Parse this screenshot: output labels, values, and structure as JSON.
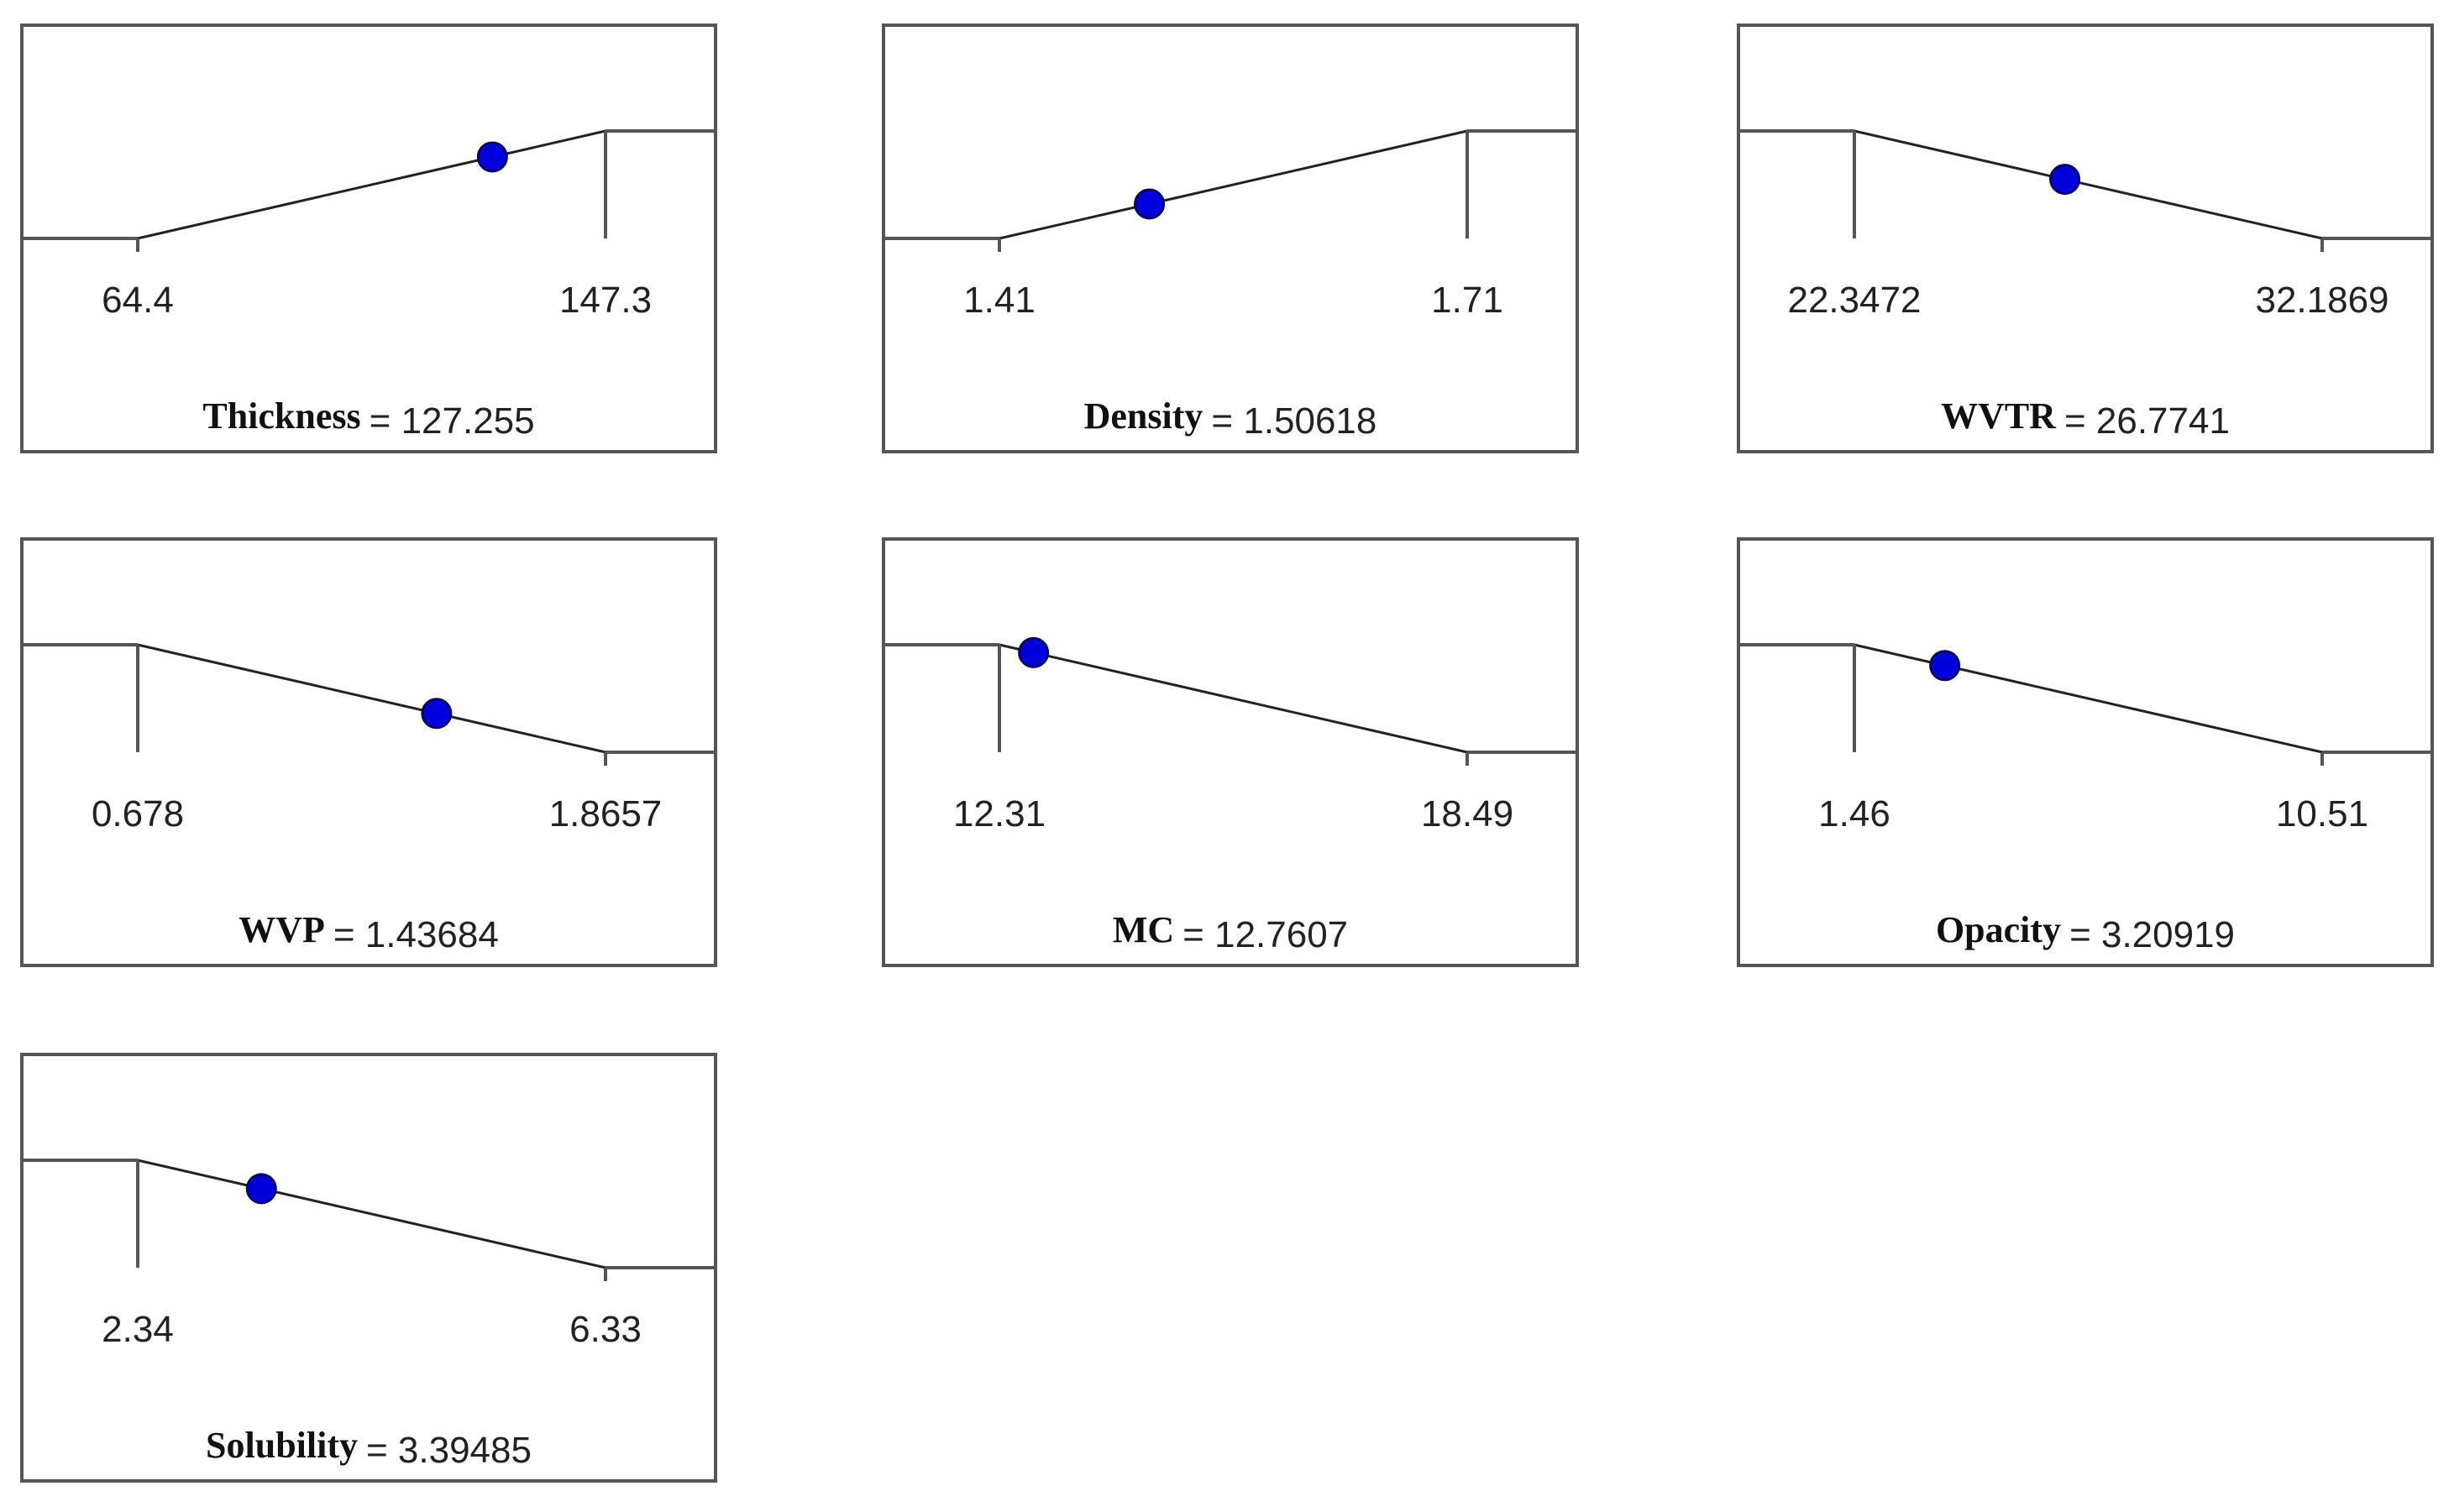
{
  "chart_data": [
    {
      "type": "line",
      "response": "Thickness",
      "low_label": "64.4",
      "high_label": "147.3",
      "x": [
        64.4,
        147.3
      ],
      "y": [
        0,
        1
      ],
      "goal": "maximize",
      "current_value": 127.255,
      "value_text": "= 127.255"
    },
    {
      "type": "line",
      "response": "Density",
      "low_label": "1.41",
      "high_label": "1.71",
      "x": [
        1.41,
        1.71
      ],
      "y": [
        0,
        1
      ],
      "goal": "maximize",
      "current_value": 1.50618,
      "value_text": "= 1.50618"
    },
    {
      "type": "line",
      "response": "WVTR",
      "low_label": "22.3472",
      "high_label": "32.1869",
      "x": [
        22.3472,
        32.1869
      ],
      "y": [
        1,
        0
      ],
      "goal": "minimize",
      "current_value": 26.7741,
      "value_text": "= 26.7741"
    },
    {
      "type": "line",
      "response": "WVP",
      "low_label": "0.678",
      "high_label": "1.8657",
      "x": [
        0.678,
        1.8657
      ],
      "y": [
        1,
        0
      ],
      "goal": "minimize",
      "current_value": 1.43684,
      "value_text": "= 1.43684"
    },
    {
      "type": "line",
      "response": "MC",
      "low_label": "12.31",
      "high_label": "18.49",
      "x": [
        12.31,
        18.49
      ],
      "y": [
        1,
        0
      ],
      "goal": "minimize",
      "current_value": 12.7607,
      "value_text": "= 12.7607"
    },
    {
      "type": "line",
      "response": "Opacity",
      "low_label": "1.46",
      "high_label": "10.51",
      "x": [
        1.46,
        10.51
      ],
      "y": [
        1,
        0
      ],
      "goal": "minimize",
      "current_value": 3.20919,
      "value_text": "= 3.20919"
    },
    {
      "type": "line",
      "response": "Solubility",
      "low_label": "2.34",
      "high_label": "6.33",
      "x": [
        2.34,
        6.33
      ],
      "y": [
        1,
        0
      ],
      "goal": "minimize",
      "current_value": 3.39485,
      "value_text": "= 3.39485"
    }
  ],
  "colors": {
    "frame": "#555555",
    "line": "#222222",
    "marker_fill": "#0000dd",
    "marker_stroke": "#000066"
  }
}
